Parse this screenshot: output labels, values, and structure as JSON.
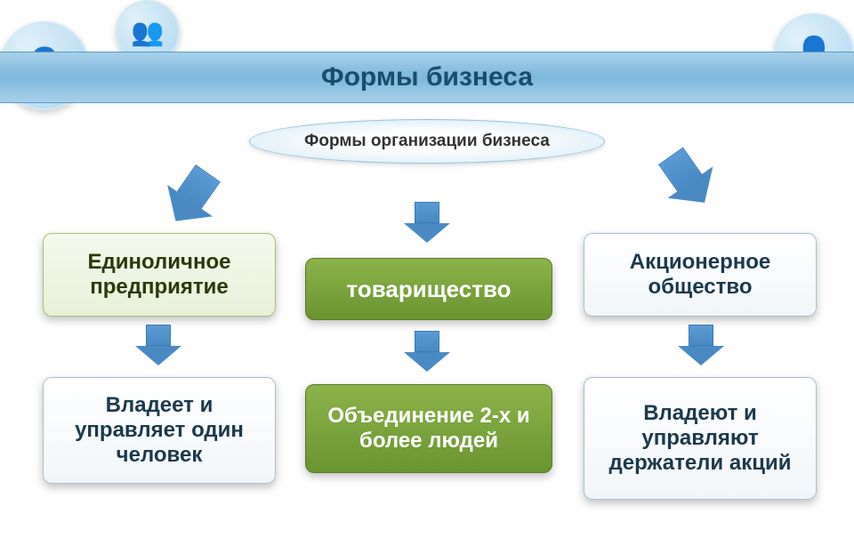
{
  "header": {
    "title": "Формы бизнеса",
    "band_gradient": [
      "#a8d0e8",
      "#7cb8dd"
    ],
    "title_color": "#1a4d6d",
    "title_fontsize": 30
  },
  "subtitle": {
    "text": "Формы организации бизнеса",
    "bg_gradient": [
      "#ffffff",
      "#d0e8f5"
    ],
    "border_color": "#90c0e0",
    "fontsize": 19
  },
  "arrows": {
    "fill_gradient": [
      "#5b9bd5",
      "#4a8ac4"
    ],
    "border_color": "#3a7ab4"
  },
  "columns": [
    {
      "top_box": {
        "text": "Единоличное предприятие",
        "style": "green-light",
        "bg_gradient": [
          "#f5f9ed",
          "#e8f0d8"
        ],
        "border_color": "#a8c070",
        "text_color": "#2a3a0a",
        "fontsize": 24
      },
      "bottom_box": {
        "text": "Владеет и управляет один человек",
        "style": "white",
        "bg_gradient": [
          "#ffffff",
          "#f2f6f9"
        ],
        "border_color": "#a8c0d0",
        "text_color": "#1a3a4d",
        "fontsize": 24
      }
    },
    {
      "top_box": {
        "text": "товарищество",
        "style": "green-dark",
        "bg_gradient": [
          "#8ab44a",
          "#6a9430"
        ],
        "border_color": "#5a7a28",
        "text_color": "#ffffff",
        "fontsize": 26
      },
      "bottom_box": {
        "text": "Объединение 2-х и более людей",
        "style": "green-dark",
        "bg_gradient": [
          "#8ab44a",
          "#6a9430"
        ],
        "border_color": "#5a7a28",
        "text_color": "#ffffff",
        "fontsize": 24
      }
    },
    {
      "top_box": {
        "text": "Акционерное общество",
        "style": "white",
        "bg_gradient": [
          "#ffffff",
          "#f2f6f9"
        ],
        "border_color": "#a8c0d0",
        "text_color": "#1a3a4d",
        "fontsize": 24
      },
      "bottom_box": {
        "text": "Владеют и управляют держатели акций",
        "style": "white",
        "bg_gradient": [
          "#ffffff",
          "#f2f6f9"
        ],
        "border_color": "#a8c0d0",
        "text_color": "#1a3a4d",
        "fontsize": 24
      }
    }
  ],
  "decorative_circles": [
    {
      "position": "top-left-big",
      "size": 100
    },
    {
      "position": "top-left-mid",
      "size": 72
    },
    {
      "position": "top-right",
      "size": 90
    }
  ]
}
